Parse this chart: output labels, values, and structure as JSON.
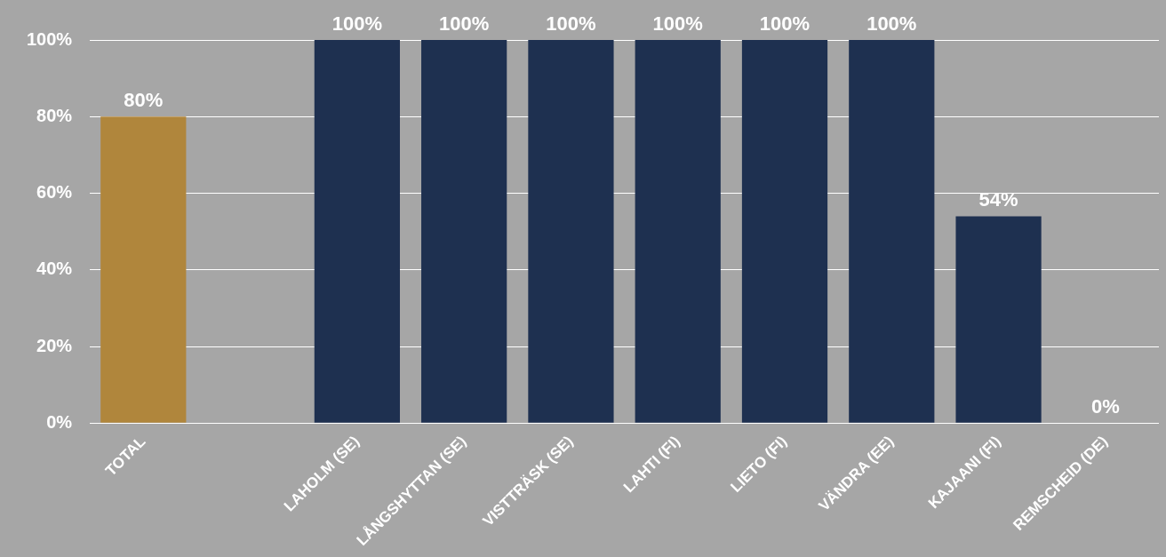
{
  "chart_data": {
    "type": "bar",
    "categories": [
      "TOTAL",
      null,
      "LAHOLM (SE)",
      "LÅNGSHYTTAN (SE)",
      "VISTTRÄSK (SE)",
      "LAHTI (FI)",
      "LIETO (FI)",
      "VÄNDRA (EE)",
      "KAJAANI (FI)",
      "REMSCHEID (DE)"
    ],
    "values": [
      80,
      null,
      100,
      100,
      100,
      100,
      100,
      100,
      54,
      0
    ],
    "colors": [
      "#b0863c",
      "#1e3050",
      "#1e3050",
      "#1e3050",
      "#1e3050",
      "#1e3050",
      "#1e3050",
      "#1e3050",
      "#1e3050",
      "#1e3050"
    ],
    "value_labels": [
      "80%",
      null,
      "100%",
      "100%",
      "100%",
      "100%",
      "100%",
      "100%",
      "54%",
      "0%"
    ],
    "ylim": [
      0,
      100
    ],
    "yticks": [
      {
        "value": 0,
        "label": "0%"
      },
      {
        "value": 20,
        "label": "20%"
      },
      {
        "value": 40,
        "label": "40%"
      },
      {
        "value": 60,
        "label": "60%"
      },
      {
        "value": 80,
        "label": "80%"
      },
      {
        "value": 100,
        "label": "100%"
      }
    ],
    "grid": "y",
    "legend": false
  }
}
